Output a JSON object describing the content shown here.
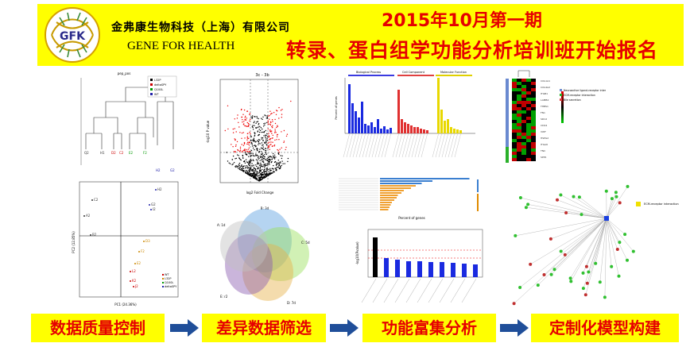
{
  "header": {
    "company_cn": "金弗康生物科技（上海）有限公司",
    "company_en": "GENE FOR HEALTH",
    "logo_text": "GFK",
    "headline_line1": "2015年10月第一期",
    "headline_line2": "转录、蛋白组学功能分析培训班开始报名"
  },
  "steps": [
    {
      "label": "数据质量控制"
    },
    {
      "label": "差异数据筛选"
    },
    {
      "label": "功能富集分析"
    },
    {
      "label": "定制化模型构建"
    }
  ],
  "figures": {
    "dendrogram": {
      "title": "pep_pos",
      "legend": [
        "L32P",
        "deltaSPY",
        "Q100L",
        "WT"
      ]
    },
    "pca": {
      "xlabel": "PC1 (24.36%)",
      "ylabel": "PC2 (12.85%)",
      "legend": [
        "WT",
        "L32P",
        "Q100L",
        "deltaSPY"
      ]
    },
    "volcano": {
      "title": "3c - 3b",
      "xlabel": "log2 Fold Change",
      "ylabel": "-log10 P value"
    },
    "venn": {
      "title": "B: 3d",
      "labels": [
        "A: 1d",
        "C: 5d",
        "D: 7d",
        "E: r2"
      ]
    },
    "go_bar": {
      "groups": [
        "Biological Process",
        "Cell Component",
        "Molecular Function"
      ],
      "ylabel": "Percent of genes"
    },
    "hbar": {
      "xlabel": "Percent of genes"
    },
    "enrich_bar": {
      "ylabel": "-log10(Pvalue)"
    },
    "network": {
      "hub_label": "ECM-receptor interaction"
    }
  },
  "colors": {
    "banner": "#ffff00",
    "headline": "#e60000",
    "arrow": "#1f4e99"
  }
}
